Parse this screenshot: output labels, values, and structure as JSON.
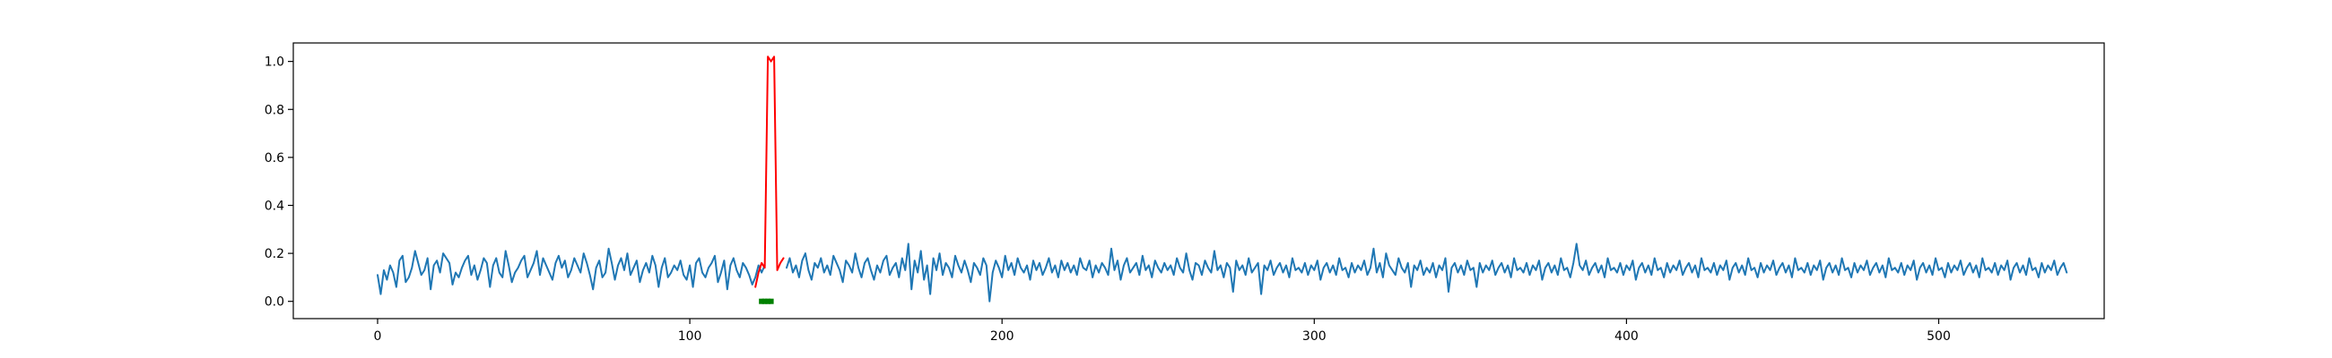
{
  "chart_data": {
    "type": "line",
    "title": "",
    "xlabel": "",
    "ylabel": "",
    "xlim": [
      -27,
      553
    ],
    "ylim": [
      -0.072,
      1.077
    ],
    "xticks": [
      0,
      100,
      200,
      300,
      400,
      500
    ],
    "yticks": [
      0.0,
      0.2,
      0.4,
      0.6,
      0.8,
      1.0
    ],
    "xtick_labels": [
      "0",
      "100",
      "200",
      "300",
      "400",
      "500"
    ],
    "ytick_labels": [
      "0.0",
      "0.2",
      "0.4",
      "0.6",
      "0.8",
      "1.0"
    ],
    "grid": false,
    "legend": "none",
    "series": [
      {
        "color": "#1f77b4",
        "x_start": 0,
        "values": [
          0.11,
          0.03,
          0.13,
          0.09,
          0.15,
          0.12,
          0.06,
          0.17,
          0.19,
          0.08,
          0.1,
          0.14,
          0.21,
          0.16,
          0.11,
          0.13,
          0.18,
          0.05,
          0.15,
          0.17,
          0.12,
          0.2,
          0.18,
          0.16,
          0.07,
          0.12,
          0.1,
          0.14,
          0.17,
          0.19,
          0.11,
          0.15,
          0.09,
          0.13,
          0.18,
          0.16,
          0.06,
          0.15,
          0.18,
          0.12,
          0.1,
          0.21,
          0.15,
          0.08,
          0.12,
          0.14,
          0.17,
          0.19,
          0.1,
          0.13,
          0.16,
          0.21,
          0.11,
          0.18,
          0.15,
          0.12,
          0.09,
          0.16,
          0.19,
          0.14,
          0.17,
          0.1,
          0.13,
          0.18,
          0.15,
          0.12,
          0.2,
          0.16,
          0.11,
          0.05,
          0.14,
          0.17,
          0.1,
          0.12,
          0.22,
          0.16,
          0.09,
          0.15,
          0.18,
          0.13,
          0.2,
          0.11,
          0.14,
          0.17,
          0.08,
          0.13,
          0.16,
          0.12,
          0.19,
          0.15,
          0.06,
          0.14,
          0.18,
          0.1,
          0.12,
          0.15,
          0.13,
          0.17,
          0.11,
          0.09,
          0.15,
          0.06,
          0.16,
          0.18,
          0.12,
          0.1,
          0.14,
          0.16,
          0.19,
          0.08,
          0.12,
          0.17,
          0.05,
          0.15,
          0.18,
          0.13,
          0.1,
          0.16,
          0.14,
          0.11,
          0.07,
          0.1,
          0.15,
          0.12,
          0.15
        ],
        "_note": ""
      },
      {
        "color": "#ff0000",
        "x_start": 121,
        "values": [
          0.06,
          0.12,
          0.16,
          0.14,
          1.02,
          1.0,
          1.02,
          0.13,
          0.16,
          0.18
        ]
      },
      {
        "color": "#1f77b4",
        "x_start": 131,
        "values": [
          0.14,
          0.18,
          0.12,
          0.15,
          0.1,
          0.17,
          0.2,
          0.13,
          0.09,
          0.16,
          0.14,
          0.18,
          0.12,
          0.15,
          0.11,
          0.19,
          0.16,
          0.13,
          0.08,
          0.17,
          0.15,
          0.12,
          0.2,
          0.14,
          0.1,
          0.16,
          0.18,
          0.13,
          0.09,
          0.15,
          0.12,
          0.17,
          0.19,
          0.11,
          0.14,
          0.16,
          0.1,
          0.18,
          0.13,
          0.24,
          0.05,
          0.17,
          0.12,
          0.21,
          0.09,
          0.15,
          0.03,
          0.18,
          0.13,
          0.2,
          0.11,
          0.16,
          0.14,
          0.1,
          0.19,
          0.15,
          0.12,
          0.17,
          0.13,
          0.08,
          0.16,
          0.14,
          0.11,
          0.18,
          0.15,
          0.0,
          0.12,
          0.17,
          0.14,
          0.1,
          0.19,
          0.13,
          0.16,
          0.11,
          0.18,
          0.14,
          0.12,
          0.15,
          0.09,
          0.17,
          0.13,
          0.16,
          0.11,
          0.14,
          0.18,
          0.12,
          0.15,
          0.1,
          0.17,
          0.13,
          0.16,
          0.12,
          0.15,
          0.11,
          0.18,
          0.14,
          0.13,
          0.17,
          0.1,
          0.15,
          0.12,
          0.16,
          0.14,
          0.11,
          0.22,
          0.13,
          0.17,
          0.09,
          0.15,
          0.18,
          0.12,
          0.14,
          0.16,
          0.11,
          0.19,
          0.13,
          0.15,
          0.1,
          0.17,
          0.14,
          0.12,
          0.16,
          0.13,
          0.15,
          0.11,
          0.18,
          0.14,
          0.12,
          0.2,
          0.13,
          0.09,
          0.16,
          0.15,
          0.11,
          0.17,
          0.14,
          0.12,
          0.21,
          0.13,
          0.15,
          0.1,
          0.16,
          0.14,
          0.04,
          0.17,
          0.13,
          0.15,
          0.11,
          0.18,
          0.12,
          0.14,
          0.16,
          0.03,
          0.15,
          0.13,
          0.17,
          0.11,
          0.14,
          0.16,
          0.12,
          0.15,
          0.1,
          0.18,
          0.13,
          0.14,
          0.12,
          0.16,
          0.11,
          0.15,
          0.13,
          0.17,
          0.09,
          0.14,
          0.16,
          0.12,
          0.15,
          0.11,
          0.18,
          0.13,
          0.14,
          0.1,
          0.16,
          0.12,
          0.15,
          0.13,
          0.17,
          0.11,
          0.14,
          0.22,
          0.12,
          0.16,
          0.1,
          0.2,
          0.15,
          0.13,
          0.11,
          0.18,
          0.14,
          0.12,
          0.16,
          0.06,
          0.15,
          0.13,
          0.17,
          0.11,
          0.14,
          0.12,
          0.16,
          0.1,
          0.15,
          0.13,
          0.18,
          0.04,
          0.14,
          0.16,
          0.12,
          0.15,
          0.11,
          0.17,
          0.13,
          0.14,
          0.06,
          0.16,
          0.12,
          0.15,
          0.13,
          0.17,
          0.11,
          0.14,
          0.16,
          0.12,
          0.15,
          0.1,
          0.18,
          0.13,
          0.14,
          0.12,
          0.16,
          0.11,
          0.15,
          0.13,
          0.17,
          0.09,
          0.14,
          0.16,
          0.12,
          0.15,
          0.11,
          0.18,
          0.13,
          0.14,
          0.1,
          0.16,
          0.24,
          0.15,
          0.13,
          0.17,
          0.11,
          0.14,
          0.16,
          0.12,
          0.15,
          0.1,
          0.18,
          0.13,
          0.14,
          0.12,
          0.16,
          0.11,
          0.15,
          0.13,
          0.17,
          0.09,
          0.14,
          0.16,
          0.12,
          0.15,
          0.11,
          0.18,
          0.13,
          0.14,
          0.1,
          0.16,
          0.12,
          0.15,
          0.13,
          0.17,
          0.11,
          0.14,
          0.16,
          0.12,
          0.15,
          0.1,
          0.18,
          0.13,
          0.14,
          0.12,
          0.16,
          0.11,
          0.15,
          0.13,
          0.17,
          0.09,
          0.14,
          0.16,
          0.12,
          0.15,
          0.11,
          0.18,
          0.13,
          0.14,
          0.1,
          0.16,
          0.12,
          0.15,
          0.13,
          0.17,
          0.11,
          0.14,
          0.16,
          0.12,
          0.15,
          0.1,
          0.18,
          0.13,
          0.14,
          0.12,
          0.16,
          0.11,
          0.15,
          0.13,
          0.17,
          0.09,
          0.14,
          0.16,
          0.12,
          0.15,
          0.11,
          0.18,
          0.13,
          0.14,
          0.1,
          0.16,
          0.12,
          0.15,
          0.13,
          0.17,
          0.11,
          0.14,
          0.16,
          0.12,
          0.15,
          0.1,
          0.18,
          0.13,
          0.14,
          0.12,
          0.16,
          0.11,
          0.15,
          0.13,
          0.17,
          0.09,
          0.14,
          0.16,
          0.12,
          0.15,
          0.11,
          0.18,
          0.13,
          0.14,
          0.1,
          0.16,
          0.12,
          0.15,
          0.13,
          0.17,
          0.11,
          0.14,
          0.16,
          0.12,
          0.15,
          0.1,
          0.18,
          0.13,
          0.14,
          0.12,
          0.16,
          0.11,
          0.15,
          0.13,
          0.17,
          0.09,
          0.14,
          0.16,
          0.12,
          0.15,
          0.11,
          0.18,
          0.13,
          0.14,
          0.1,
          0.16,
          0.12,
          0.15,
          0.13,
          0.17,
          0.11,
          0.14,
          0.16,
          0.12
        ]
      }
    ],
    "markers": [
      {
        "color": "#008000",
        "x": [
          123,
          124,
          125,
          126
        ],
        "y": [
          0.0,
          0.0,
          0.0,
          0.0
        ]
      }
    ]
  }
}
